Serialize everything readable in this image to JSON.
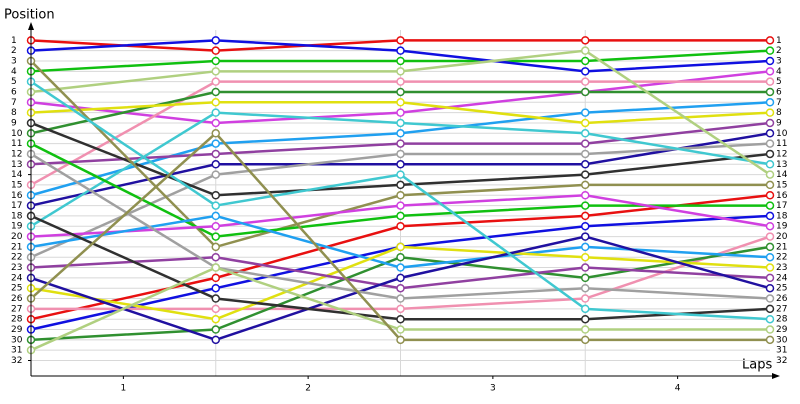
{
  "chart_data": {
    "type": "position-line",
    "ylabel": "Position",
    "xlabel": "Laps",
    "x": [
      0,
      1,
      2,
      3,
      4
    ],
    "xlim": [
      0,
      4.05
    ],
    "xticks": [
      {
        "value": 0.5,
        "label": "1"
      },
      {
        "value": 1.5,
        "label": "2"
      },
      {
        "value": 2.5,
        "label": "3"
      },
      {
        "value": 3.5,
        "label": "4"
      }
    ],
    "ylim": [
      0,
      33.5
    ],
    "y_inverted": true,
    "yticks": [
      1,
      2,
      3,
      4,
      5,
      6,
      7,
      8,
      9,
      10,
      11,
      12,
      13,
      14,
      15,
      16,
      17,
      18,
      19,
      20,
      21,
      22,
      23,
      24,
      25,
      26,
      27,
      28,
      29,
      30,
      31,
      32
    ],
    "grid": true,
    "series": [
      {
        "color": "#e81010",
        "values": [
          1,
          2,
          1,
          1,
          1
        ]
      },
      {
        "color": "#10c010",
        "values": [
          4,
          3,
          3,
          3,
          2
        ]
      },
      {
        "color": "#1010e0",
        "values": [
          2,
          1,
          2,
          4,
          3
        ]
      },
      {
        "color": "#d040e0",
        "values": [
          7,
          9,
          8,
          6,
          4
        ]
      },
      {
        "color": "#f090b0",
        "values": [
          15,
          5,
          5,
          5,
          5
        ]
      },
      {
        "color": "#309030",
        "values": [
          10,
          6,
          6,
          6,
          6
        ]
      },
      {
        "color": "#20a0f0",
        "values": [
          16,
          11,
          10,
          8,
          7
        ]
      },
      {
        "color": "#e0e010",
        "values": [
          8,
          7,
          7,
          9,
          8
        ]
      },
      {
        "color": "#9040a0",
        "values": [
          13,
          12,
          11,
          11,
          9
        ]
      },
      {
        "color": "#2010a0",
        "values": [
          17,
          13,
          13,
          13,
          10
        ]
      },
      {
        "color": "#a0a0a0",
        "values": [
          22,
          14,
          12,
          12,
          11
        ]
      },
      {
        "color": "#303030",
        "values": [
          9,
          16,
          15,
          14,
          12
        ]
      },
      {
        "color": "#40c8d0",
        "values": [
          19,
          8,
          9,
          10,
          13
        ]
      },
      {
        "color": "#b0d080",
        "values": [
          6,
          4,
          4,
          2,
          14
        ]
      },
      {
        "color": "#909050",
        "values": [
          3,
          21,
          16,
          15,
          15
        ]
      },
      {
        "color": "#e81010",
        "values": [
          28,
          24,
          19,
          18,
          16
        ]
      },
      {
        "color": "#10c010",
        "values": [
          11,
          20,
          18,
          17,
          17
        ]
      },
      {
        "color": "#1010e0",
        "values": [
          29,
          25,
          21,
          19,
          18
        ]
      },
      {
        "color": "#d040e0",
        "values": [
          20,
          19,
          17,
          16,
          19
        ]
      },
      {
        "color": "#f090b0",
        "values": [
          27,
          27,
          27,
          26,
          20
        ]
      },
      {
        "color": "#309030",
        "values": [
          30,
          29,
          22,
          24,
          21
        ]
      },
      {
        "color": "#20a0f0",
        "values": [
          21,
          18,
          23,
          21,
          22
        ]
      },
      {
        "color": "#e0e010",
        "values": [
          25,
          28,
          21,
          22,
          23
        ]
      },
      {
        "color": "#9040a0",
        "values": [
          23,
          22,
          25,
          23,
          24
        ]
      },
      {
        "color": "#2010a0",
        "values": [
          24,
          30,
          24,
          20,
          25
        ]
      },
      {
        "color": "#a0a0a0",
        "values": [
          12,
          23,
          26,
          25,
          26
        ]
      },
      {
        "color": "#303030",
        "values": [
          18,
          26,
          28,
          28,
          27
        ]
      },
      {
        "color": "#40c8d0",
        "values": [
          5,
          17,
          14,
          27,
          28
        ]
      },
      {
        "color": "#b0d080",
        "values": [
          31,
          23,
          29,
          29,
          29
        ]
      },
      {
        "color": "#909050",
        "values": [
          26,
          10,
          30,
          30,
          30
        ]
      }
    ]
  }
}
